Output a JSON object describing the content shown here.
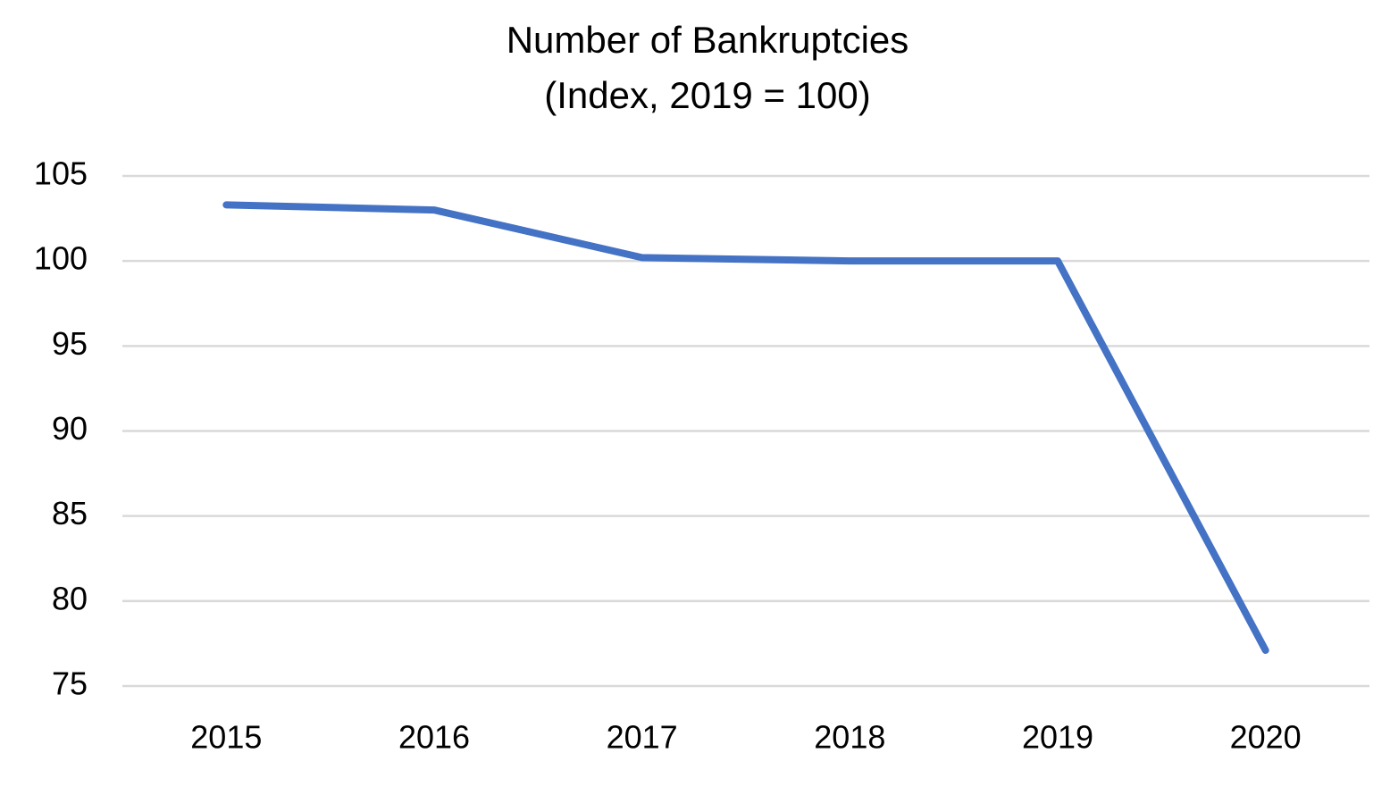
{
  "chart_data": {
    "type": "line",
    "title": "Number of Bankruptcies",
    "subtitle": "(Index, 2019 = 100)",
    "categories": [
      "2015",
      "2016",
      "2017",
      "2018",
      "2019",
      "2020"
    ],
    "series": [
      {
        "name": "Number of Bankruptcies",
        "color": "#4472c4",
        "values": [
          103.3,
          103.0,
          100.2,
          100.0,
          100.0,
          77.1
        ]
      }
    ],
    "ylim": [
      75,
      105
    ],
    "yticks": [
      75,
      80,
      85,
      90,
      95,
      100,
      105
    ],
    "grid": true,
    "legend": false
  }
}
